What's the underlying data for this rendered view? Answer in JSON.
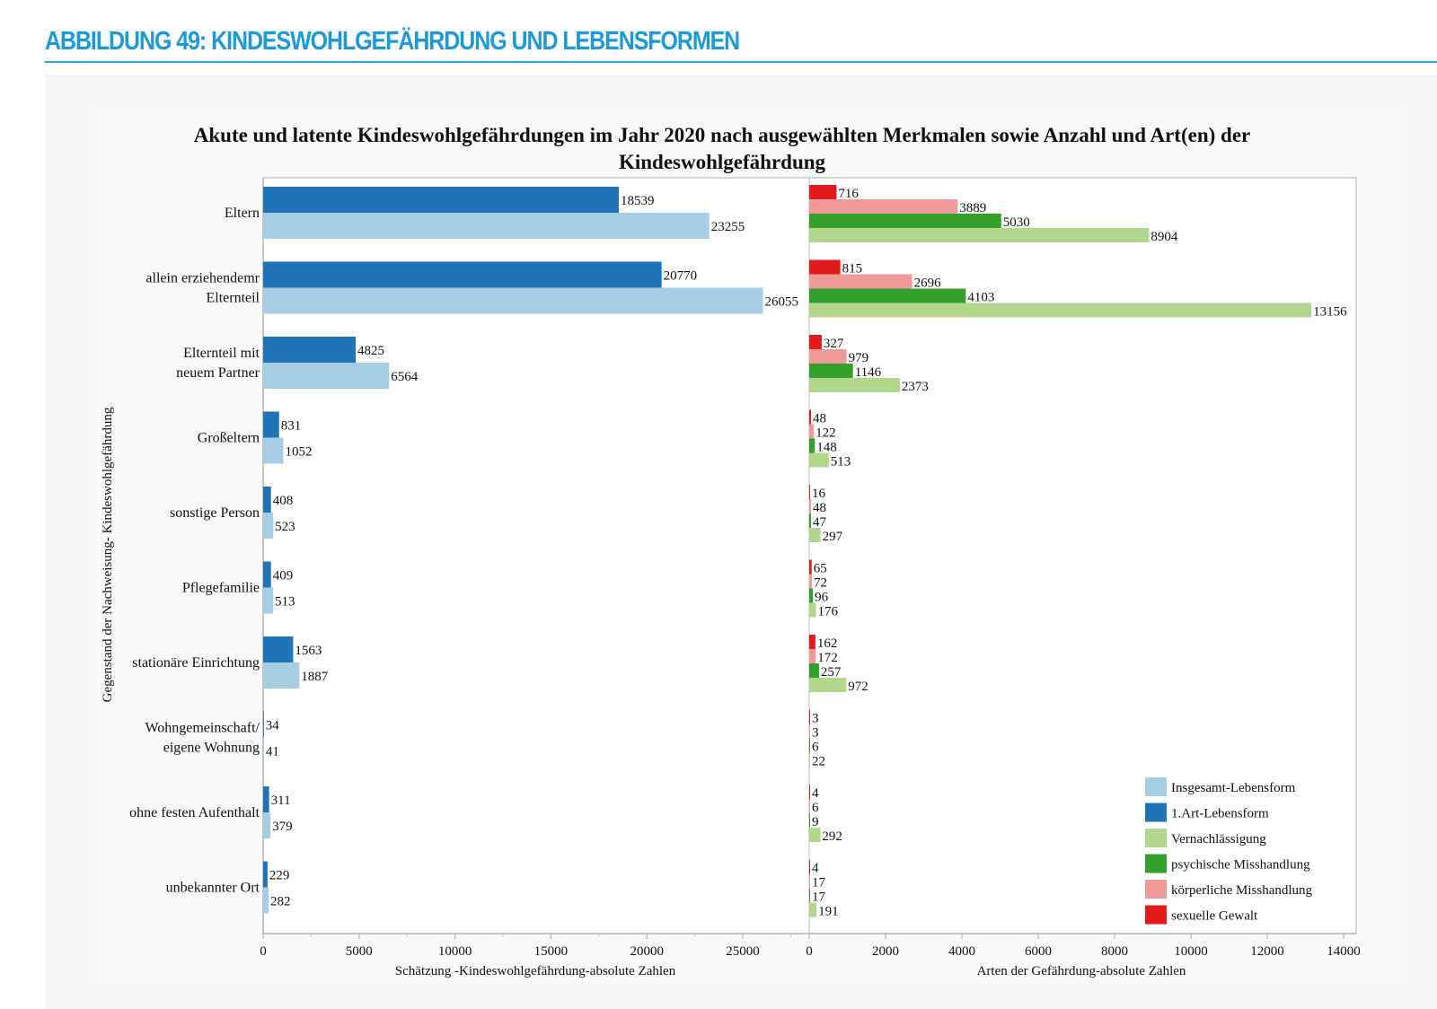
{
  "page": {
    "heading": "ABBILDUNG 49: KINDESWOHLGEFÄHRDUNG UND LEBENSFORMEN"
  },
  "chart_data": {
    "type": "bar",
    "orientation": "horizontal",
    "title": "Akute und latente Kindeswohlgefährdungen im Jahr 2020 nach ausgewählten Merkmalen sowie Anzahl und Art(en) der Kindeswohlgefährdung",
    "title_lines": [
      "Akute und latente Kindeswohlgefährdungen im Jahr 2020 nach ausgewählten Merkmalen sowie Anzahl und Art(en) der",
      "Kindeswohlgefährdung"
    ],
    "ylabel": "Gegenstand der Nachweisung- Kindeswohlgefährdung",
    "categories": [
      [
        "Eltern"
      ],
      [
        "allein erziehendemr",
        "Elternteil"
      ],
      [
        "Elternteil mit",
        "neuem Partner"
      ],
      [
        "Großeltern"
      ],
      [
        "sonstige Person"
      ],
      [
        "Pflegefamilie"
      ],
      [
        "stationäre Einrichtung"
      ],
      [
        "Wohngemeinschaft/",
        "eigene Wohnung"
      ],
      [
        "ohne festen Aufenthalt"
      ],
      [
        "unbekannter Ort"
      ]
    ],
    "panels": [
      {
        "xlabel": "Schätzung -Kindeswohlgefährdung-absolute Zahlen",
        "xlim": [
          0,
          28000
        ],
        "xticks": [
          0,
          5000,
          10000,
          15000,
          20000,
          25000
        ],
        "series": [
          {
            "name": "1.Art-Lebensform",
            "color": "#2074b6",
            "values": [
              18539,
              20770,
              4825,
              831,
              408,
              409,
              1563,
              34,
              311,
              229
            ]
          },
          {
            "name": "Insgesamt-Lebensform",
            "color": "#a6cee3",
            "values": [
              23255,
              26055,
              6564,
              1052,
              523,
              513,
              1887,
              41,
              379,
              282
            ]
          }
        ]
      },
      {
        "xlabel": "Arten der Gefährdung-absolute Zahlen",
        "xlim": [
          0,
          14000
        ],
        "xticks": [
          0,
          2000,
          4000,
          6000,
          8000,
          10000,
          12000,
          14000
        ],
        "series": [
          {
            "name": "sexuelle Gewalt",
            "color": "#e31a1c",
            "values": [
              716,
              815,
              327,
              48,
              16,
              65,
              162,
              3,
              4,
              4
            ]
          },
          {
            "name": "körperliche Misshandlung",
            "color": "#f09999",
            "values": [
              3889,
              2696,
              979,
              122,
              48,
              72,
              172,
              3,
              6,
              17
            ]
          },
          {
            "name": "psychische Misshandlung",
            "color": "#33a02c",
            "values": [
              5030,
              4103,
              1146,
              148,
              47,
              96,
              257,
              6,
              9,
              17
            ]
          },
          {
            "name": "Vernachlässigung",
            "color": "#b2d68c",
            "values": [
              8904,
              13156,
              2373,
              513,
              297,
              176,
              972,
              22,
              292,
              191
            ]
          }
        ]
      }
    ],
    "legend": {
      "placement": "bottom-right",
      "entries": [
        {
          "label": "Insgesamt-Lebensform",
          "color": "#a6cee3"
        },
        {
          "label": "1.Art-Lebensform",
          "color": "#2074b6"
        },
        {
          "label": "Vernachlässigung",
          "color": "#b2d68c"
        },
        {
          "label": "psychische Misshandlung",
          "color": "#33a02c"
        },
        {
          "label": "körperliche Misshandlung",
          "color": "#f09999"
        },
        {
          "label": "sexuelle Gewalt",
          "color": "#e31a1c"
        }
      ]
    },
    "grid": false
  }
}
